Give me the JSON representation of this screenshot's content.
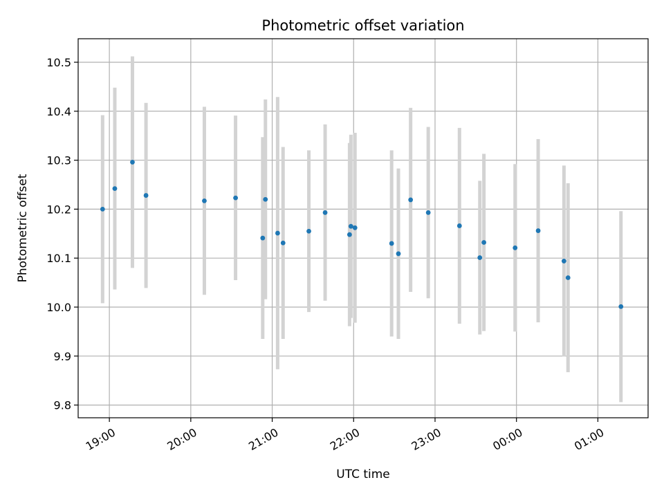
{
  "chart_data": {
    "type": "scatter",
    "title": "Photometric offset variation",
    "xlabel": "UTC time",
    "ylabel": "Photometric offset",
    "x_ticks": [
      "19:00",
      "20:00",
      "21:00",
      "22:00",
      "23:00",
      "00:00",
      "01:00"
    ],
    "y_ticks": [
      "9.8",
      "9.9",
      "10.0",
      "10.1",
      "10.2",
      "10.3",
      "10.4",
      "10.5"
    ],
    "xlim": [
      "18:37",
      "01:37"
    ],
    "ylim": [
      9.774,
      10.548
    ],
    "grid": true,
    "marker_color": "#1f77b4",
    "errorbar_color": "#d3d3d3",
    "points": [
      {
        "time": "18:55",
        "y": 10.2,
        "err": 0.192
      },
      {
        "time": "19:04",
        "y": 10.242,
        "err": 0.206
      },
      {
        "time": "19:17",
        "y": 10.296,
        "err": 0.216
      },
      {
        "time": "19:27",
        "y": 10.228,
        "err": 0.189
      },
      {
        "time": "20:10",
        "y": 10.217,
        "err": 0.192
      },
      {
        "time": "20:33",
        "y": 10.223,
        "err": 0.168
      },
      {
        "time": "20:53",
        "y": 10.141,
        "err": 0.206
      },
      {
        "time": "20:55",
        "y": 10.22,
        "err": 0.204
      },
      {
        "time": "21:04",
        "y": 10.151,
        "err": 0.278
      },
      {
        "time": "21:08",
        "y": 10.131,
        "err": 0.196
      },
      {
        "time": "21:27",
        "y": 10.155,
        "err": 0.165
      },
      {
        "time": "21:39",
        "y": 10.193,
        "err": 0.18
      },
      {
        "time": "21:57",
        "y": 10.148,
        "err": 0.187
      },
      {
        "time": "21:58",
        "y": 10.165,
        "err": 0.187
      },
      {
        "time": "22:01",
        "y": 10.162,
        "err": 0.194
      },
      {
        "time": "22:28",
        "y": 10.13,
        "err": 0.19
      },
      {
        "time": "22:33",
        "y": 10.109,
        "err": 0.174
      },
      {
        "time": "22:42",
        "y": 10.219,
        "err": 0.188
      },
      {
        "time": "22:55",
        "y": 10.193,
        "err": 0.175
      },
      {
        "time": "23:18",
        "y": 10.166,
        "err": 0.2
      },
      {
        "time": "23:33",
        "y": 10.101,
        "err": 0.157
      },
      {
        "time": "23:36",
        "y": 10.132,
        "err": 0.181
      },
      {
        "time": "23:59",
        "y": 10.121,
        "err": 0.171
      },
      {
        "time": "00:16",
        "y": 10.156,
        "err": 0.187
      },
      {
        "time": "00:35",
        "y": 10.094,
        "err": 0.195
      },
      {
        "time": "00:38",
        "y": 10.06,
        "err": 0.193
      },
      {
        "time": "01:17",
        "y": 10.001,
        "err": 0.195
      }
    ]
  }
}
